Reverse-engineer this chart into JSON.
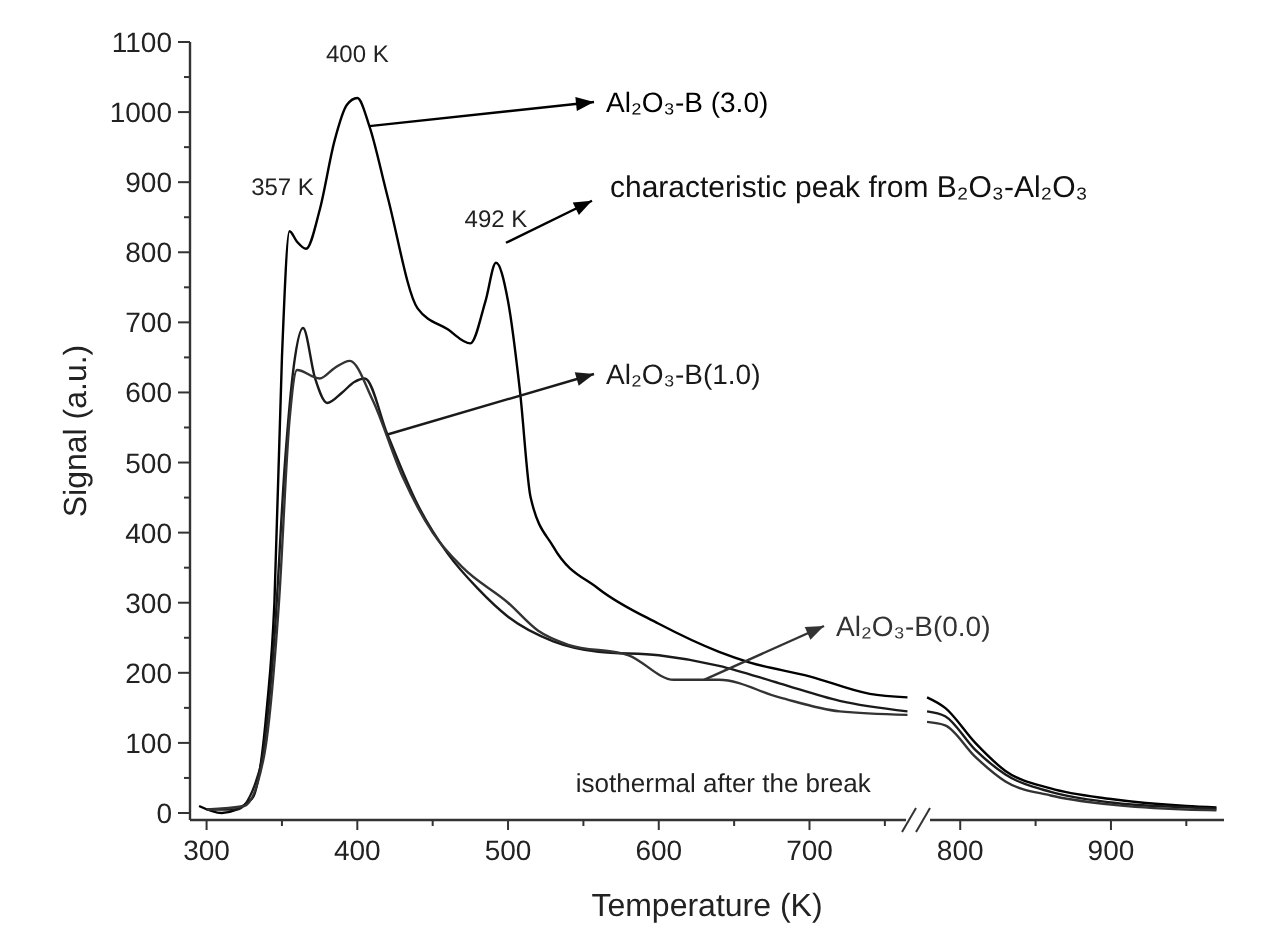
{
  "chart_data": {
    "type": "line",
    "xlabel": "Temperature (K)",
    "ylabel": "Signal (a.u.)",
    "xlim": [
      289,
      975
    ],
    "ylim": [
      -10,
      1100
    ],
    "xticks": [
      300,
      {
        "value": 350,
        "label": null
      },
      400,
      {
        "value": 450,
        "label": null
      },
      500,
      {
        "value": 550,
        "label": null
      },
      600,
      {
        "value": 650,
        "label": null
      },
      700,
      {
        "value": 750,
        "label": null
      },
      800,
      {
        "value": 850,
        "label": null
      },
      900,
      {
        "value": 950,
        "label": null
      }
    ],
    "yticks": [
      0,
      {
        "value": 50,
        "label": null
      },
      100,
      {
        "value": 150,
        "label": null
      },
      200,
      {
        "value": 250,
        "label": null
      },
      300,
      {
        "value": 350,
        "label": null
      },
      400,
      {
        "value": 450,
        "label": null
      },
      500,
      {
        "value": 550,
        "label": null
      },
      600,
      {
        "value": 650,
        "label": null
      },
      700,
      {
        "value": 750,
        "label": null
      },
      800,
      {
        "value": 850,
        "label": null
      },
      900,
      {
        "value": 950,
        "label": null
      },
      1000,
      {
        "value": 1050,
        "label": null
      },
      1100
    ],
    "grid": false,
    "legend": "right",
    "marker": "none",
    "line_style": "solid",
    "series": [
      {
        "name": "Al₂O₃-B (3.0)",
        "color": "#000000",
        "x": [
          295,
          310,
          330,
          340,
          345,
          350,
          355,
          360,
          366,
          375,
          385,
          393,
          400,
          408,
          420,
          440,
          460,
          475,
          485,
          492,
          500,
          508,
          515,
          530,
          560,
          600,
          640,
          660,
          700,
          740,
          765,
          772,
          778,
          790,
          810,
          830,
          860,
          900,
          950,
          970
        ],
        "values": [
          10,
          0,
          20,
          150,
          300,
          650,
          830,
          815,
          805,
          860,
          960,
          1010,
          1020,
          980,
          880,
          720,
          690,
          670,
          730,
          785,
          730,
          600,
          450,
          380,
          320,
          270,
          230,
          215,
          195,
          170,
          165,
          null,
          165,
          150,
          100,
          60,
          35,
          20,
          10,
          8
        ]
      },
      {
        "name": "Al₂O₃-B(1.0)",
        "color": "#1a1a1a",
        "x": [
          300,
          320,
          335,
          345,
          352,
          358,
          364,
          372,
          380,
          390,
          398,
          405,
          420,
          440,
          460,
          480,
          500,
          530,
          560,
          600,
          640,
          680,
          720,
          765,
          772,
          778,
          790,
          810,
          830,
          860,
          900,
          950,
          970
        ],
        "values": [
          5,
          5,
          60,
          250,
          500,
          640,
          692,
          620,
          585,
          600,
          615,
          620,
          540,
          440,
          370,
          320,
          280,
          245,
          230,
          225,
          210,
          185,
          160,
          145,
          null,
          145,
          138,
          90,
          55,
          30,
          15,
          8,
          6
        ]
      },
      {
        "name": "Al₂O₃-B(0.0)",
        "color": "#333333",
        "x": [
          300,
          325,
          338,
          348,
          355,
          360,
          375,
          385,
          395,
          410,
          430,
          450,
          470,
          500,
          520,
          540,
          580,
          610,
          640,
          680,
          720,
          765,
          772,
          778,
          790,
          810,
          830,
          860,
          900,
          950,
          970
        ],
        "values": [
          5,
          10,
          80,
          300,
          560,
          632,
          620,
          635,
          645,
          590,
          480,
          400,
          350,
          300,
          260,
          240,
          225,
          190,
          190,
          165,
          145,
          140,
          null,
          130,
          125,
          80,
          45,
          25,
          12,
          5,
          4
        ]
      }
    ],
    "annotations": [
      {
        "text": "357 K",
        "x": 357,
        "y": 830
      },
      {
        "text": "400 K",
        "x": 400,
        "y": 1020
      },
      {
        "text": "492 K",
        "x": 492,
        "y": 785
      },
      "characteristic peak from B₂O₃-Al₂O₃",
      "isothermal after the break"
    ]
  }
}
